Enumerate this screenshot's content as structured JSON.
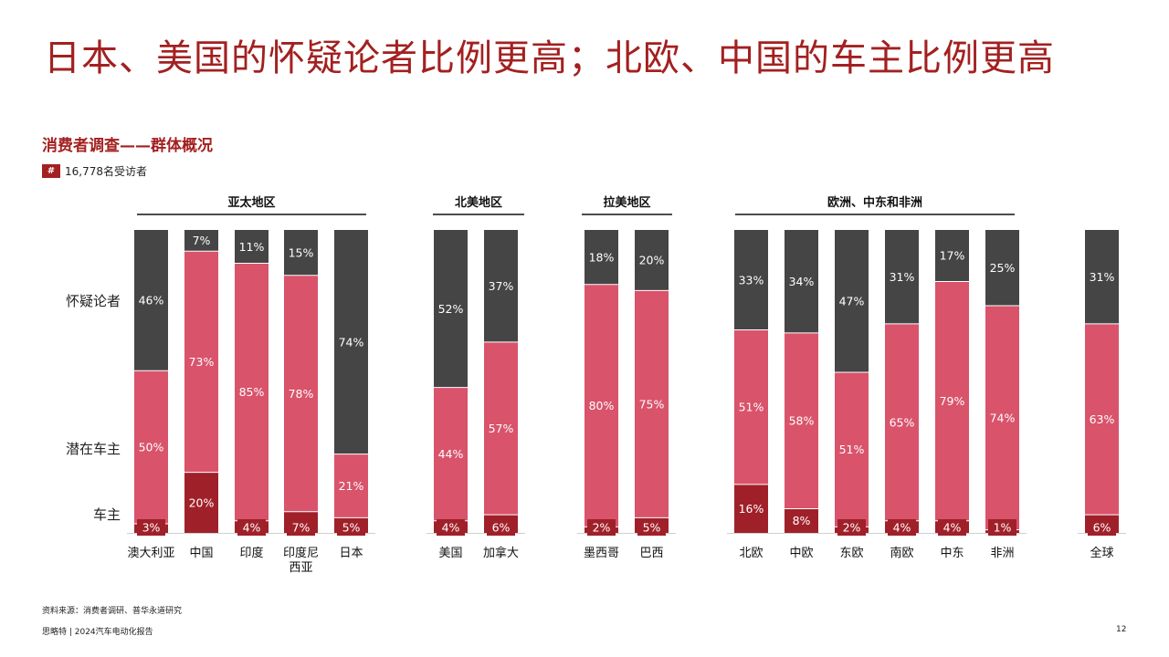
{
  "title": "日本、美国的怀疑论者比例更高；北欧、中国的车主比例更高",
  "subtitle": "消费者调查——群体概况",
  "respondents": {
    "icon_text": "#",
    "text": "16,778名受访者"
  },
  "footer": {
    "source": "资料来源：消费者调研、普华永道研究",
    "left": "思略特 | 2024汽车电动化报告",
    "page": "12"
  },
  "colors": {
    "skeptic": "#454545",
    "potential": "#d9536b",
    "owner": "#a0202a",
    "accent": "#a32020"
  },
  "chart_data": {
    "type": "bar",
    "stacked": true,
    "percent_stacked": true,
    "ylim": [
      0,
      100
    ],
    "legend_placement": "left",
    "row_labels": [
      "怀疑论者",
      "潜在车主",
      "车主"
    ],
    "groups": [
      {
        "name": "亚太地区",
        "categories": [
          "澳大利亚",
          "中国",
          "印度",
          "印度尼西亚",
          "日本"
        ]
      },
      {
        "name": "北美地区",
        "categories": [
          "美国",
          "加拿大"
        ]
      },
      {
        "name": "拉美地区",
        "categories": [
          "墨西哥",
          "巴西"
        ]
      },
      {
        "name": "欧洲、中东和非洲",
        "categories": [
          "北欧",
          "中欧",
          "东欧",
          "南欧",
          "中东",
          "非洲"
        ]
      },
      {
        "name": "",
        "categories": [
          "全球"
        ]
      }
    ],
    "categories": [
      "澳大利亚",
      "中国",
      "印度",
      "印度尼西亚",
      "日本",
      "美国",
      "加拿大",
      "墨西哥",
      "巴西",
      "北欧",
      "中欧",
      "东欧",
      "南欧",
      "中东",
      "非洲",
      "全球"
    ],
    "category_display": [
      "澳大利亚",
      "中国",
      "印度",
      "印度尼\n西亚",
      "日本",
      "美国",
      "加拿大",
      "墨西哥",
      "巴西",
      "北欧",
      "中欧",
      "东欧",
      "南欧",
      "中东",
      "非洲",
      "全球"
    ],
    "series": [
      {
        "name": "车主",
        "values": [
          3,
          20,
          4,
          7,
          5,
          4,
          6,
          2,
          5,
          16,
          8,
          2,
          4,
          4,
          1,
          6
        ]
      },
      {
        "name": "潜在车主",
        "values": [
          50,
          73,
          85,
          78,
          21,
          44,
          57,
          80,
          75,
          51,
          58,
          51,
          65,
          79,
          74,
          63
        ]
      },
      {
        "name": "怀疑论者",
        "values": [
          46,
          7,
          11,
          15,
          74,
          52,
          37,
          18,
          20,
          33,
          34,
          47,
          31,
          17,
          25,
          31
        ]
      }
    ]
  }
}
